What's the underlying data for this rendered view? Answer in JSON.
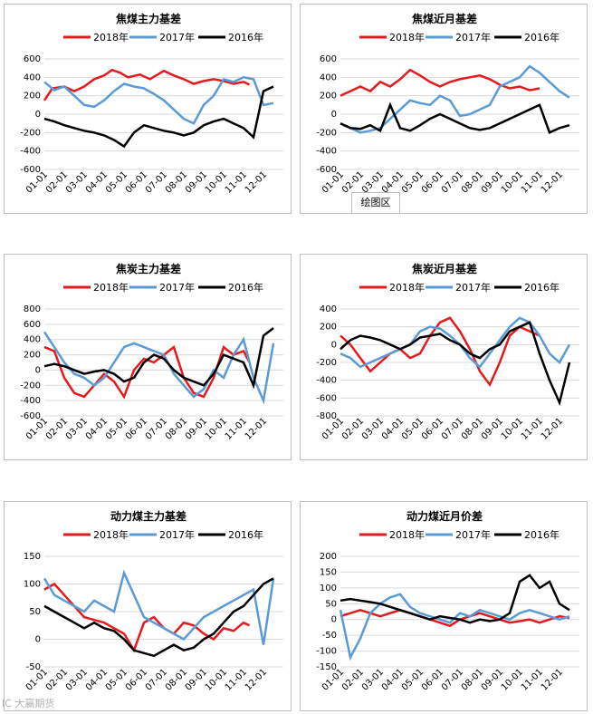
{
  "tooltip": "绘图区",
  "watermark": "IC 大赢期货",
  "colors": {
    "2018": "#e41a1c",
    "2017": "#5b9bd5",
    "2016": "#000000"
  },
  "chart_data": [
    {
      "type": "line",
      "title": "焦煤主力基差",
      "ylim": [
        -600,
        600
      ],
      "yticks": [
        -600,
        -400,
        -200,
        0,
        200,
        400,
        600
      ],
      "categories": [
        "01-01",
        "02-01",
        "03-01",
        "04-01",
        "05-01",
        "06-01",
        "07-01",
        "08-01",
        "09-01",
        "10-01",
        "11-01",
        "12-01"
      ],
      "series": [
        {
          "name": "2018年",
          "x": [
            0,
            0.4,
            1,
            1.5,
            2,
            2.5,
            3,
            3.4,
            3.8,
            4.2,
            4.8,
            5.3,
            6,
            6.5,
            7,
            7.5,
            8,
            8.5,
            9,
            9.5,
            10,
            10.3
          ],
          "values": [
            150,
            280,
            300,
            250,
            300,
            380,
            420,
            480,
            450,
            400,
            430,
            380,
            470,
            420,
            380,
            330,
            360,
            380,
            360,
            330,
            350,
            320
          ]
        },
        {
          "name": "2017年",
          "x": [
            0,
            0.5,
            1,
            1.5,
            2,
            2.5,
            3,
            3.5,
            4,
            4.5,
            5,
            5.5,
            6,
            6.5,
            7,
            7.5,
            8,
            8.5,
            9,
            9.5,
            10,
            10.5,
            11,
            11.5
          ],
          "values": [
            350,
            260,
            300,
            200,
            100,
            80,
            150,
            250,
            330,
            300,
            280,
            220,
            150,
            50,
            -50,
            -100,
            100,
            200,
            380,
            350,
            400,
            380,
            100,
            120
          ]
        },
        {
          "name": "2016年",
          "x": [
            0,
            0.5,
            1,
            1.5,
            2,
            2.5,
            3,
            3.5,
            4,
            4.5,
            5,
            5.5,
            6,
            6.5,
            7,
            7.5,
            8,
            8.5,
            9,
            9.5,
            10,
            10.5,
            11,
            11.5
          ],
          "values": [
            -50,
            -80,
            -120,
            -150,
            -180,
            -200,
            -230,
            -280,
            -350,
            -200,
            -120,
            -150,
            -180,
            -200,
            -230,
            -200,
            -120,
            -80,
            -50,
            -100,
            -150,
            -250,
            250,
            300
          ]
        }
      ]
    },
    {
      "type": "line",
      "title": "焦煤近月基差",
      "ylim": [
        -600,
        600
      ],
      "yticks": [
        -600,
        -400,
        -200,
        0,
        200,
        400,
        600
      ],
      "categories": [
        "01-01",
        "02-01",
        "03-01",
        "04-01",
        "05-01",
        "06-01",
        "07-01",
        "08-01",
        "09-01",
        "10-01",
        "11-01",
        "12-01"
      ],
      "series": [
        {
          "name": "2018年",
          "x": [
            0,
            0.5,
            1,
            1.5,
            2,
            2.5,
            3,
            3.5,
            4,
            4.5,
            5,
            5.5,
            6,
            6.5,
            7,
            7.5,
            8,
            8.5,
            9,
            9.5,
            10
          ],
          "values": [
            200,
            250,
            300,
            250,
            350,
            300,
            380,
            480,
            420,
            350,
            300,
            350,
            380,
            400,
            420,
            380,
            320,
            280,
            300,
            260,
            280
          ]
        },
        {
          "name": "2017年",
          "x": [
            0,
            0.5,
            1,
            1.5,
            2,
            2.5,
            3,
            3.5,
            4,
            4.5,
            5,
            5.5,
            6,
            6.5,
            7,
            7.5,
            8,
            8.5,
            9,
            9.5,
            10,
            10.5,
            11,
            11.5
          ],
          "values": [
            -100,
            -150,
            -200,
            -180,
            -150,
            -50,
            50,
            150,
            120,
            100,
            200,
            150,
            -20,
            0,
            50,
            100,
            300,
            350,
            400,
            520,
            450,
            350,
            250,
            180
          ]
        },
        {
          "name": "2016年",
          "x": [
            0,
            0.5,
            1,
            1.5,
            2,
            2.5,
            3,
            3.5,
            4,
            4.5,
            5,
            5.5,
            6,
            6.5,
            7,
            7.5,
            8,
            8.5,
            9,
            9.5,
            10,
            10.5,
            11,
            11.5
          ],
          "values": [
            -100,
            -150,
            -160,
            -120,
            -180,
            100,
            -150,
            -180,
            -120,
            -50,
            0,
            -50,
            -100,
            -150,
            -170,
            -150,
            -100,
            -50,
            0,
            50,
            100,
            -200,
            -150,
            -120
          ]
        }
      ]
    },
    {
      "type": "line",
      "title": "焦炭主力基差",
      "ylim": [
        -600,
        800
      ],
      "yticks": [
        -600,
        -400,
        -200,
        0,
        200,
        400,
        600,
        800
      ],
      "categories": [
        "01-01",
        "02-01",
        "03-01",
        "04-01",
        "05-01",
        "06-01",
        "07-01",
        "08-01",
        "09-01",
        "10-01",
        "11-01",
        "12-01"
      ],
      "series": [
        {
          "name": "2018年",
          "x": [
            0,
            0.5,
            1,
            1.5,
            2,
            2.5,
            3,
            3.5,
            4,
            4.5,
            5,
            5.5,
            6,
            6.5,
            7,
            7.5,
            8,
            8.5,
            9,
            9.5,
            10,
            10.3
          ],
          "values": [
            300,
            250,
            -100,
            -300,
            -350,
            -200,
            -50,
            -150,
            -350,
            0,
            150,
            100,
            200,
            300,
            -100,
            -300,
            -350,
            -100,
            300,
            200,
            250,
            100
          ]
        },
        {
          "name": "2017年",
          "x": [
            0,
            0.5,
            1,
            1.5,
            2,
            2.5,
            3,
            3.5,
            4,
            4.5,
            5,
            5.5,
            6,
            6.5,
            7,
            7.5,
            8,
            8.5,
            9,
            9.5,
            10,
            10.5,
            11,
            11.5
          ],
          "values": [
            500,
            300,
            100,
            -50,
            -100,
            -200,
            -100,
            100,
            300,
            350,
            300,
            250,
            200,
            -50,
            -200,
            -350,
            -250,
            0,
            -100,
            200,
            400,
            -100,
            -400,
            350
          ]
        },
        {
          "name": "2016年",
          "x": [
            0,
            0.5,
            1,
            1.5,
            2,
            2.5,
            3,
            3.5,
            4,
            4.5,
            5,
            5.5,
            6,
            6.5,
            7,
            7.5,
            8,
            8.5,
            9,
            9.5,
            10,
            10.5,
            11,
            11.5
          ],
          "values": [
            50,
            80,
            50,
            0,
            -50,
            -20,
            0,
            -50,
            -150,
            -100,
            100,
            200,
            150,
            0,
            -100,
            -150,
            -200,
            -50,
            200,
            150,
            100,
            -200,
            450,
            550
          ]
        }
      ]
    },
    {
      "type": "line",
      "title": "焦炭近月基差",
      "ylim": [
        -800,
        400
      ],
      "yticks": [
        -800,
        -600,
        -400,
        -200,
        0,
        200,
        400
      ],
      "categories": [
        "01-01",
        "02-01",
        "03-01",
        "04-01",
        "05-01",
        "06-01",
        "07-01",
        "08-01",
        "09-01",
        "10-01",
        "11-01",
        "12-01"
      ],
      "series": [
        {
          "name": "2018年",
          "x": [
            0,
            0.5,
            1,
            1.5,
            2,
            2.5,
            3,
            3.5,
            4,
            4.5,
            5,
            5.5,
            6,
            6.5,
            7,
            7.5,
            8,
            8.5,
            9,
            9.5,
            10
          ],
          "values": [
            100,
            0,
            -150,
            -300,
            -200,
            -100,
            -50,
            -150,
            -100,
            100,
            250,
            300,
            150,
            -50,
            -300,
            -450,
            -200,
            100,
            200,
            150,
            100
          ]
        },
        {
          "name": "2017年",
          "x": [
            0,
            0.5,
            1,
            1.5,
            2,
            2.5,
            3,
            3.5,
            4,
            4.5,
            5,
            5.5,
            6,
            6.5,
            7,
            7.5,
            8,
            8.5,
            9,
            9.5,
            10,
            10.5,
            11,
            11.5
          ],
          "values": [
            -100,
            -150,
            -250,
            -200,
            -150,
            -100,
            -50,
            0,
            150,
            200,
            180,
            100,
            0,
            -150,
            -250,
            -100,
            50,
            200,
            300,
            250,
            100,
            -100,
            -200,
            0
          ]
        },
        {
          "name": "2016年",
          "x": [
            0,
            0.5,
            1,
            1.5,
            2,
            2.5,
            3,
            3.5,
            4,
            4.5,
            5,
            5.5,
            6,
            6.5,
            7,
            7.5,
            8,
            8.5,
            9,
            9.5,
            10,
            10.5,
            11,
            11.5
          ],
          "values": [
            -50,
            50,
            100,
            80,
            50,
            0,
            -50,
            0,
            80,
            100,
            120,
            50,
            0,
            -100,
            -150,
            -50,
            0,
            150,
            200,
            250,
            -100,
            -400,
            -650,
            -200
          ]
        }
      ]
    },
    {
      "type": "line",
      "title": "动力煤主力基差",
      "ylim": [
        -50,
        150
      ],
      "yticks": [
        -50,
        0,
        50,
        100,
        150
      ],
      "categories": [
        "01-01",
        "02-01",
        "03-01",
        "04-01",
        "05-01",
        "06-01",
        "07-01",
        "08-01",
        "09-01",
        "10-01",
        "11-01",
        "12-01"
      ],
      "series": [
        {
          "name": "2018年",
          "x": [
            0,
            0.5,
            1,
            1.5,
            2,
            2.5,
            3,
            3.5,
            4,
            4.5,
            5,
            5.5,
            6,
            6.5,
            7,
            7.5,
            8,
            8.5,
            9,
            9.5,
            10,
            10.3
          ],
          "values": [
            90,
            100,
            80,
            60,
            40,
            35,
            30,
            20,
            10,
            -20,
            30,
            40,
            20,
            10,
            30,
            25,
            10,
            0,
            20,
            15,
            30,
            25
          ]
        },
        {
          "name": "2017年",
          "x": [
            0,
            0.5,
            1,
            1.5,
            2,
            2.5,
            3,
            3.5,
            4,
            4.5,
            5,
            5.5,
            6,
            6.5,
            7,
            7.5,
            8,
            8.5,
            9,
            9.5,
            10,
            10.5,
            11,
            11.5
          ],
          "values": [
            110,
            80,
            70,
            60,
            50,
            70,
            60,
            50,
            120,
            80,
            40,
            30,
            20,
            10,
            0,
            20,
            40,
            50,
            60,
            70,
            80,
            90,
            -10,
            110
          ]
        },
        {
          "name": "2016年",
          "x": [
            0,
            0.5,
            1,
            1.5,
            2,
            2.5,
            3,
            3.5,
            4,
            4.5,
            5,
            5.5,
            6,
            6.5,
            7,
            7.5,
            8,
            8.5,
            9,
            9.5,
            10,
            10.5,
            11,
            11.5
          ],
          "values": [
            60,
            50,
            40,
            30,
            20,
            30,
            20,
            15,
            0,
            -20,
            -25,
            -30,
            -20,
            -10,
            -20,
            -15,
            0,
            10,
            30,
            50,
            60,
            80,
            100,
            110
          ]
        }
      ]
    },
    {
      "type": "line",
      "title": "动力煤近月价差",
      "ylim": [
        -150,
        200
      ],
      "yticks": [
        -150,
        -100,
        -50,
        0,
        50,
        100,
        150,
        200
      ],
      "categories": [
        "01-01",
        "02-01",
        "03-01",
        "04-01",
        "05-01",
        "06-01",
        "07-01",
        "08-01",
        "09-01",
        "10-01",
        "11-01",
        "12-01"
      ],
      "series": [
        {
          "name": "2018年",
          "x": [
            0,
            0.5,
            1,
            1.5,
            2,
            2.5,
            3,
            3.5,
            4,
            4.5,
            5,
            5.5,
            6,
            6.5,
            7,
            7.5,
            8,
            8.5,
            9,
            9.5,
            10,
            10.5,
            11,
            11.5
          ],
          "values": [
            10,
            20,
            30,
            20,
            10,
            20,
            30,
            20,
            10,
            0,
            -10,
            -20,
            0,
            10,
            20,
            10,
            0,
            -10,
            -5,
            0,
            -10,
            0,
            10,
            5
          ]
        },
        {
          "name": "2017年",
          "x": [
            0,
            0.5,
            1,
            1.5,
            2,
            2.5,
            3,
            3.5,
            4,
            4.5,
            5,
            5.5,
            6,
            6.5,
            7,
            7.5,
            8,
            8.5,
            9,
            9.5,
            10,
            10.5,
            11,
            11.5
          ],
          "values": [
            30,
            -120,
            -60,
            20,
            50,
            70,
            80,
            40,
            20,
            10,
            0,
            -10,
            20,
            10,
            30,
            20,
            10,
            0,
            20,
            30,
            20,
            10,
            0,
            10
          ]
        },
        {
          "name": "2016年",
          "x": [
            0,
            0.5,
            1,
            1.5,
            2,
            2.5,
            3,
            3.5,
            4,
            4.5,
            5,
            5.5,
            6,
            6.5,
            7,
            7.5,
            8,
            8.5,
            9,
            9.5,
            10,
            10.5,
            11,
            11.5
          ],
          "values": [
            60,
            65,
            60,
            55,
            50,
            40,
            30,
            20,
            10,
            0,
            10,
            5,
            0,
            -10,
            0,
            -5,
            0,
            20,
            120,
            140,
            100,
            120,
            50,
            30
          ]
        }
      ]
    }
  ]
}
